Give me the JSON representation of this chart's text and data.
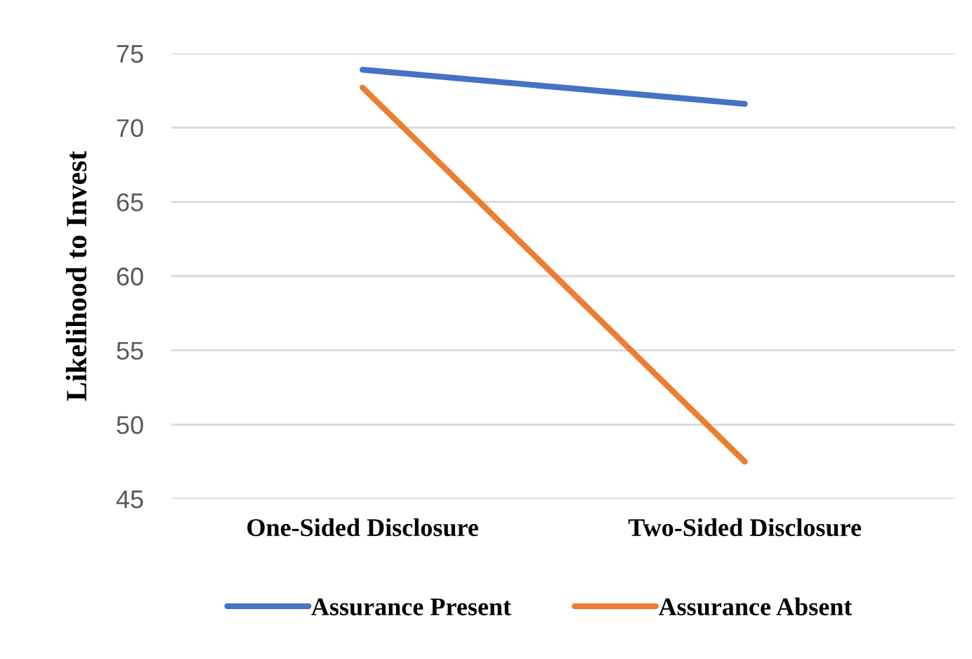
{
  "chart_data": {
    "type": "line",
    "ylabel": "Likelihood to Invest",
    "categories": [
      "One-Sided Disclosure",
      "Two-Sided Disclosure"
    ],
    "series": [
      {
        "name": "Assurance Present",
        "color": "#4472c4",
        "values": [
          73.9,
          71.6
        ]
      },
      {
        "name": "Assurance Absent",
        "color": "#ed7d31",
        "values": [
          72.7,
          47.5
        ]
      }
    ],
    "ylim": [
      45,
      75
    ],
    "yticks": [
      45,
      50,
      55,
      60,
      65,
      70,
      75
    ],
    "grid": "y",
    "legend": "bottom",
    "marker": "none",
    "line_style": "solid"
  }
}
